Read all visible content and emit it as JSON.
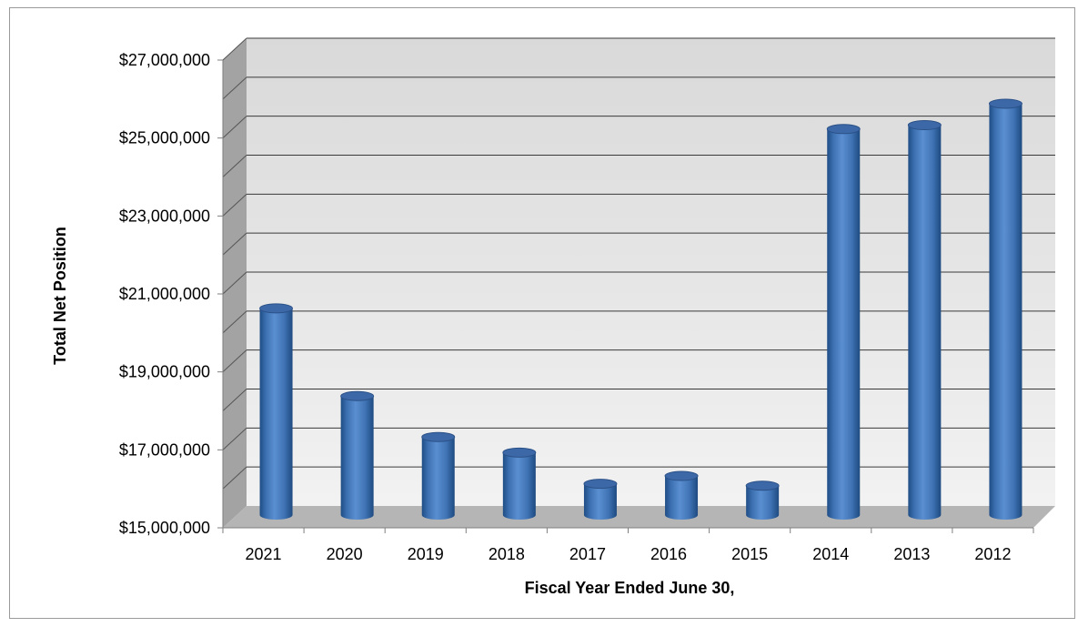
{
  "chart_data": {
    "type": "bar",
    "title": "",
    "xlabel": "Fiscal Year Ended June 30,",
    "ylabel": "Total Net Position",
    "categories": [
      "2021",
      "2020",
      "2019",
      "2018",
      "2017",
      "2016",
      "2015",
      "2014",
      "2013",
      "2012"
    ],
    "series": [
      {
        "values": [
          20350000,
          18100000,
          17050000,
          16650000,
          15850000,
          16050000,
          15800000,
          24950000,
          25050000,
          25600000
        ]
      }
    ],
    "ylim": [
      15000000,
      27000000
    ],
    "yticks": [
      15000000,
      17000000,
      19000000,
      21000000,
      23000000,
      25000000,
      27000000
    ],
    "ytick_labels": [
      "$15,000,000",
      "$17,000,000",
      "$19,000,000",
      "$21,000,000",
      "$23,000,000",
      "$25,000,000",
      "$27,000,000"
    ],
    "grid": true,
    "legend": "none",
    "colors": {
      "bar": "#4f81bd",
      "bar_dark": "#2c5a91",
      "bar_light": "#86a9d8",
      "wall": "#e6e6e6",
      "floor": "#b3b3b3",
      "side_wall": "#9d9d9d",
      "gridline": "#3a3a3a"
    }
  }
}
